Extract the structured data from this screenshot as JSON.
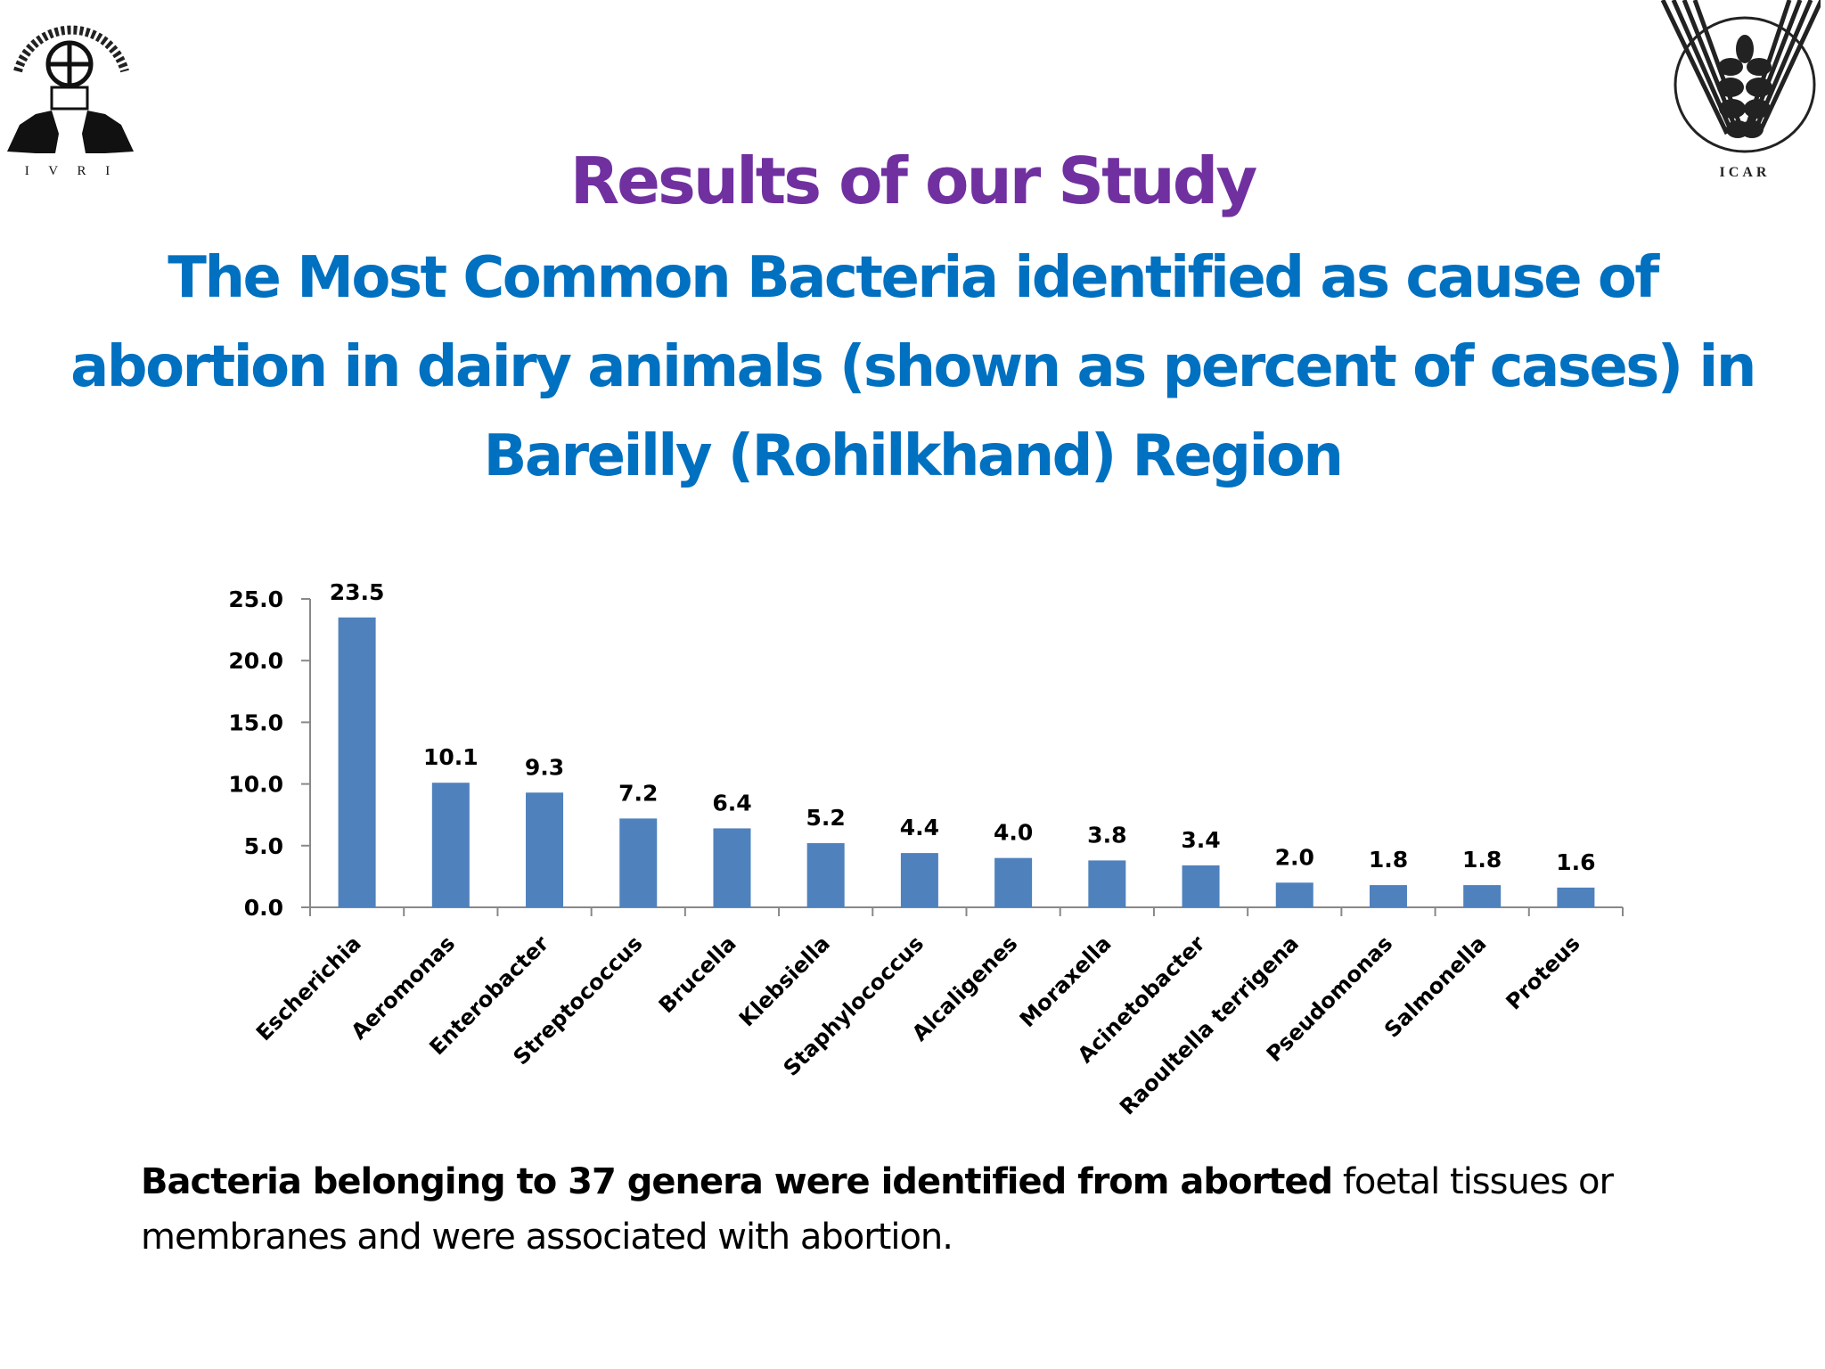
{
  "slide": {
    "title": "Results of our Study",
    "subtitle": "The Most Common Bacteria identified as cause of abortion in dairy animals (shown as percent of cases) in Bareilly (Rohilkhand) Region",
    "logos": {
      "left": {
        "name": "IVRI logo",
        "caption": "I V R I"
      },
      "right": {
        "name": "ICAR logo",
        "caption": "ICAR"
      }
    },
    "footnote": {
      "bold": "Bacteria belonging to 37 genera were identified from aborted",
      "regular": " foetal tissues or membranes  and were associated with abortion."
    },
    "colors": {
      "title": "#7030A0",
      "subtitle": "#0070C0",
      "bar": "#4F81BD",
      "axis": "#888888",
      "text": "#000000"
    }
  },
  "chart_data": {
    "type": "bar",
    "title": "The Most Common Bacteria identified as cause of abortion in dairy animals (shown as percent of cases) in Bareilly (Rohilkhand) Region",
    "xlabel": "",
    "ylabel": "",
    "categories": [
      "Escherichia",
      "Aeromonas",
      "Enterobacter",
      "Streptococcus",
      "Brucella",
      "Klebsiella",
      "Staphylococcus",
      "Alcaligenes",
      "Moraxella",
      "Acinetobacter",
      "Raoultella terrigena",
      "Pseudomonas",
      "Salmonella",
      "Proteus"
    ],
    "values": [
      23.5,
      10.1,
      9.3,
      7.2,
      6.4,
      5.2,
      4.4,
      4.0,
      3.8,
      3.4,
      2.0,
      1.8,
      1.8,
      1.6
    ],
    "value_labels": [
      "23.5",
      "10.1",
      "9.3",
      "7.2",
      "6.4",
      "5.2",
      "4.4",
      "4.0",
      "3.8",
      "3.4",
      "2.0",
      "1.8",
      "1.8",
      "1.6"
    ],
    "ylim": [
      0,
      25
    ],
    "yticks": [
      "0.0",
      "5.0",
      "10.0",
      "15.0",
      "20.0",
      "25.0"
    ],
    "grid": false,
    "legend": "none",
    "data_labels": true
  }
}
